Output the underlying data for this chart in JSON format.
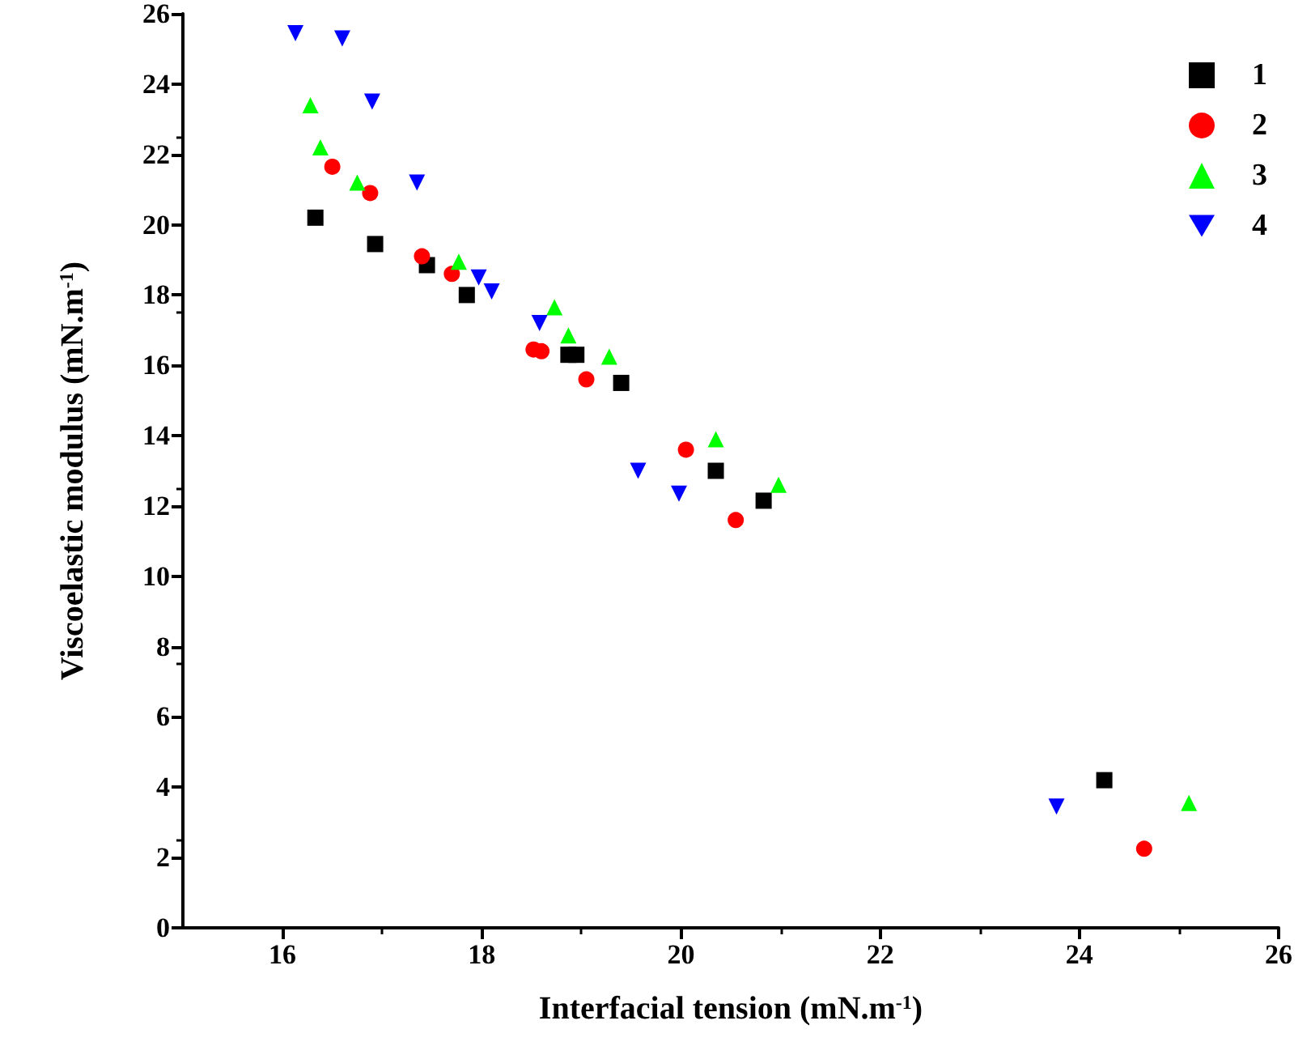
{
  "chart_data": {
    "type": "scatter",
    "xlabel": "Interfacial tension (mN.m$^{-1}$)",
    "ylabel": "Viscoelastic modulus (mN.m$^{-1}$)",
    "xlim": [
      15,
      26
    ],
    "xticks": [
      16,
      18,
      20,
      22,
      24,
      26
    ],
    "ylim": [
      0,
      26
    ],
    "yticks": [
      0,
      2,
      4,
      6,
      8,
      10,
      12,
      14,
      16,
      18,
      20,
      22,
      24,
      26
    ],
    "grid": false,
    "legend": "top right",
    "series": [
      {
        "name": "1",
        "color": "#000000",
        "marker": "square",
        "x": [
          16.33,
          16.93,
          17.45,
          17.85,
          18.87,
          18.95,
          19.4,
          20.35,
          20.83,
          24.25
        ],
        "values": [
          20.2,
          19.45,
          18.85,
          18.0,
          16.3,
          16.3,
          15.5,
          13.0,
          12.15,
          4.2
        ]
      },
      {
        "name": "2",
        "color": "#ff0000",
        "marker": "circle",
        "x": [
          16.5,
          16.88,
          17.4,
          17.7,
          18.52,
          18.6,
          19.05,
          20.05,
          20.55,
          24.65
        ],
        "values": [
          21.65,
          20.9,
          19.1,
          18.6,
          16.45,
          16.4,
          15.6,
          13.6,
          11.6,
          2.25
        ]
      },
      {
        "name": "3",
        "color": "#00ff00",
        "marker": "triangle",
        "x": [
          16.28,
          16.38,
          16.75,
          17.77,
          18.73,
          18.87,
          19.28,
          20.35,
          20.98,
          25.1
        ],
        "values": [
          23.4,
          22.2,
          21.2,
          18.95,
          17.65,
          16.85,
          16.25,
          13.9,
          12.6,
          3.55
        ]
      },
      {
        "name": "4",
        "color": "#0000ff",
        "marker": "triangle-down",
        "x": [
          16.13,
          16.6,
          16.9,
          17.35,
          17.97,
          18.1,
          18.58,
          19.57,
          19.98,
          23.77
        ],
        "values": [
          25.45,
          25.3,
          23.5,
          21.2,
          18.5,
          18.1,
          17.2,
          13.0,
          12.35,
          3.45
        ]
      }
    ]
  }
}
